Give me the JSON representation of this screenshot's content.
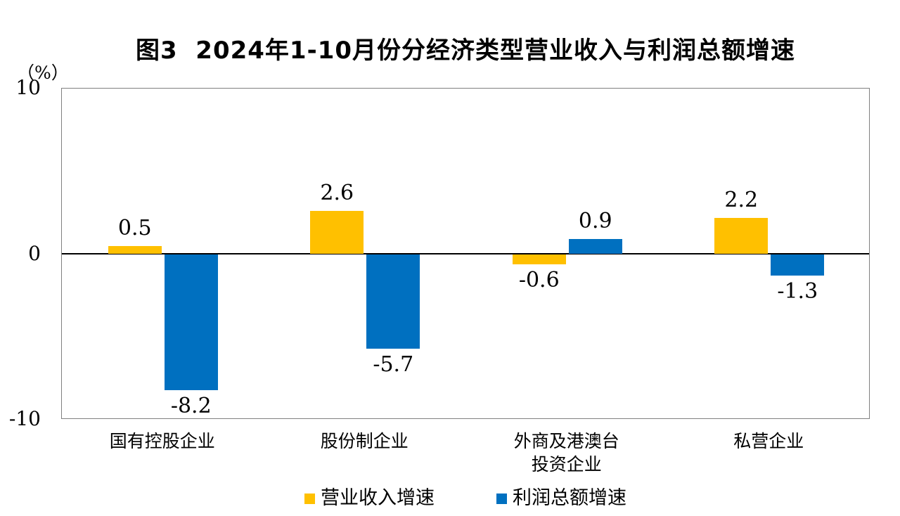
{
  "title": "图3  2024年1-10月份分经济类型营业收入与利润总额增速",
  "unit_label": "（%）",
  "chart_data": {
    "type": "bar",
    "categories": [
      "国有控股企业",
      "股份制企业",
      "外商及港澳台\n投资企业",
      "私营企业"
    ],
    "series": [
      {
        "name": "营业收入增速",
        "color": "#FFC000",
        "values": [
          0.5,
          2.6,
          -0.6,
          2.2
        ]
      },
      {
        "name": "利润总额增速",
        "color": "#0070C0",
        "values": [
          -8.2,
          -5.7,
          0.9,
          -1.3
        ]
      }
    ],
    "ylabel": "（%）",
    "ylim": [
      -10,
      10
    ],
    "yticks": [
      10,
      0,
      -10
    ],
    "grid": false,
    "legend_position": "bottom",
    "value_labels": true,
    "axis_color": "#808080",
    "zero_line_color": "#000000"
  }
}
